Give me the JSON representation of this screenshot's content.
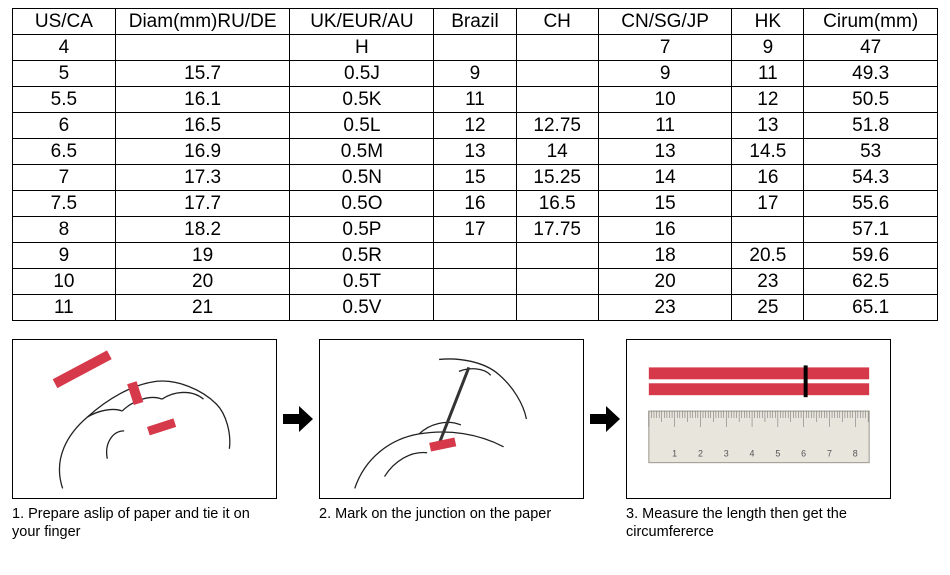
{
  "table": {
    "columns": [
      "US/CA",
      "Diam(mm)RU/DE",
      "UK/EUR/AU",
      "Brazil",
      "CH",
      "CN/SG/JP",
      "HK",
      "Cirum(mm)"
    ],
    "col_classes": [
      "col-usca",
      "col-diam",
      "col-uk",
      "col-brazil",
      "col-ch",
      "col-cn",
      "col-hk",
      "col-circum"
    ],
    "rows": [
      [
        "4",
        "",
        "H",
        "",
        "",
        "7",
        "9",
        "47"
      ],
      [
        "5",
        "15.7",
        "0.5J",
        "9",
        "",
        "9",
        "11",
        "49.3"
      ],
      [
        "5.5",
        "16.1",
        "0.5K",
        "11",
        "",
        "10",
        "12",
        "50.5"
      ],
      [
        "6",
        "16.5",
        "0.5L",
        "12",
        "12.75",
        "11",
        "13",
        "51.8"
      ],
      [
        "6.5",
        "16.9",
        "0.5M",
        "13",
        "14",
        "13",
        "14.5",
        "53"
      ],
      [
        "7",
        "17.3",
        "0.5N",
        "15",
        "15.25",
        "14",
        "16",
        "54.3"
      ],
      [
        "7.5",
        "17.7",
        "0.5O",
        "16",
        "16.5",
        "15",
        "17",
        "55.6"
      ],
      [
        "8",
        "18.2",
        "0.5P",
        "17",
        "17.75",
        "16",
        "",
        "57.1"
      ],
      [
        "9",
        "19",
        "0.5R",
        "",
        "",
        "18",
        "20.5",
        "59.6"
      ],
      [
        "10",
        "20",
        "0.5T",
        "",
        "",
        "20",
        "23",
        "62.5"
      ],
      [
        "11",
        "21",
        "0.5V",
        "",
        "",
        "23",
        "25",
        "65.1"
      ]
    ],
    "border_color": "#000000",
    "font_size": 19
  },
  "steps": {
    "items": [
      {
        "caption": "1. Prepare aslip of paper and tie it on your finger"
      },
      {
        "caption": "2. Mark on the junction on the paper"
      },
      {
        "caption": "3. Measure the length then get the circumfererce"
      }
    ],
    "accent_color": "#d63a4a",
    "ruler_bg": "#e8e5dd",
    "ruler_border": "#9a968c",
    "line_color": "#222222",
    "arrow_color": "#000000"
  }
}
